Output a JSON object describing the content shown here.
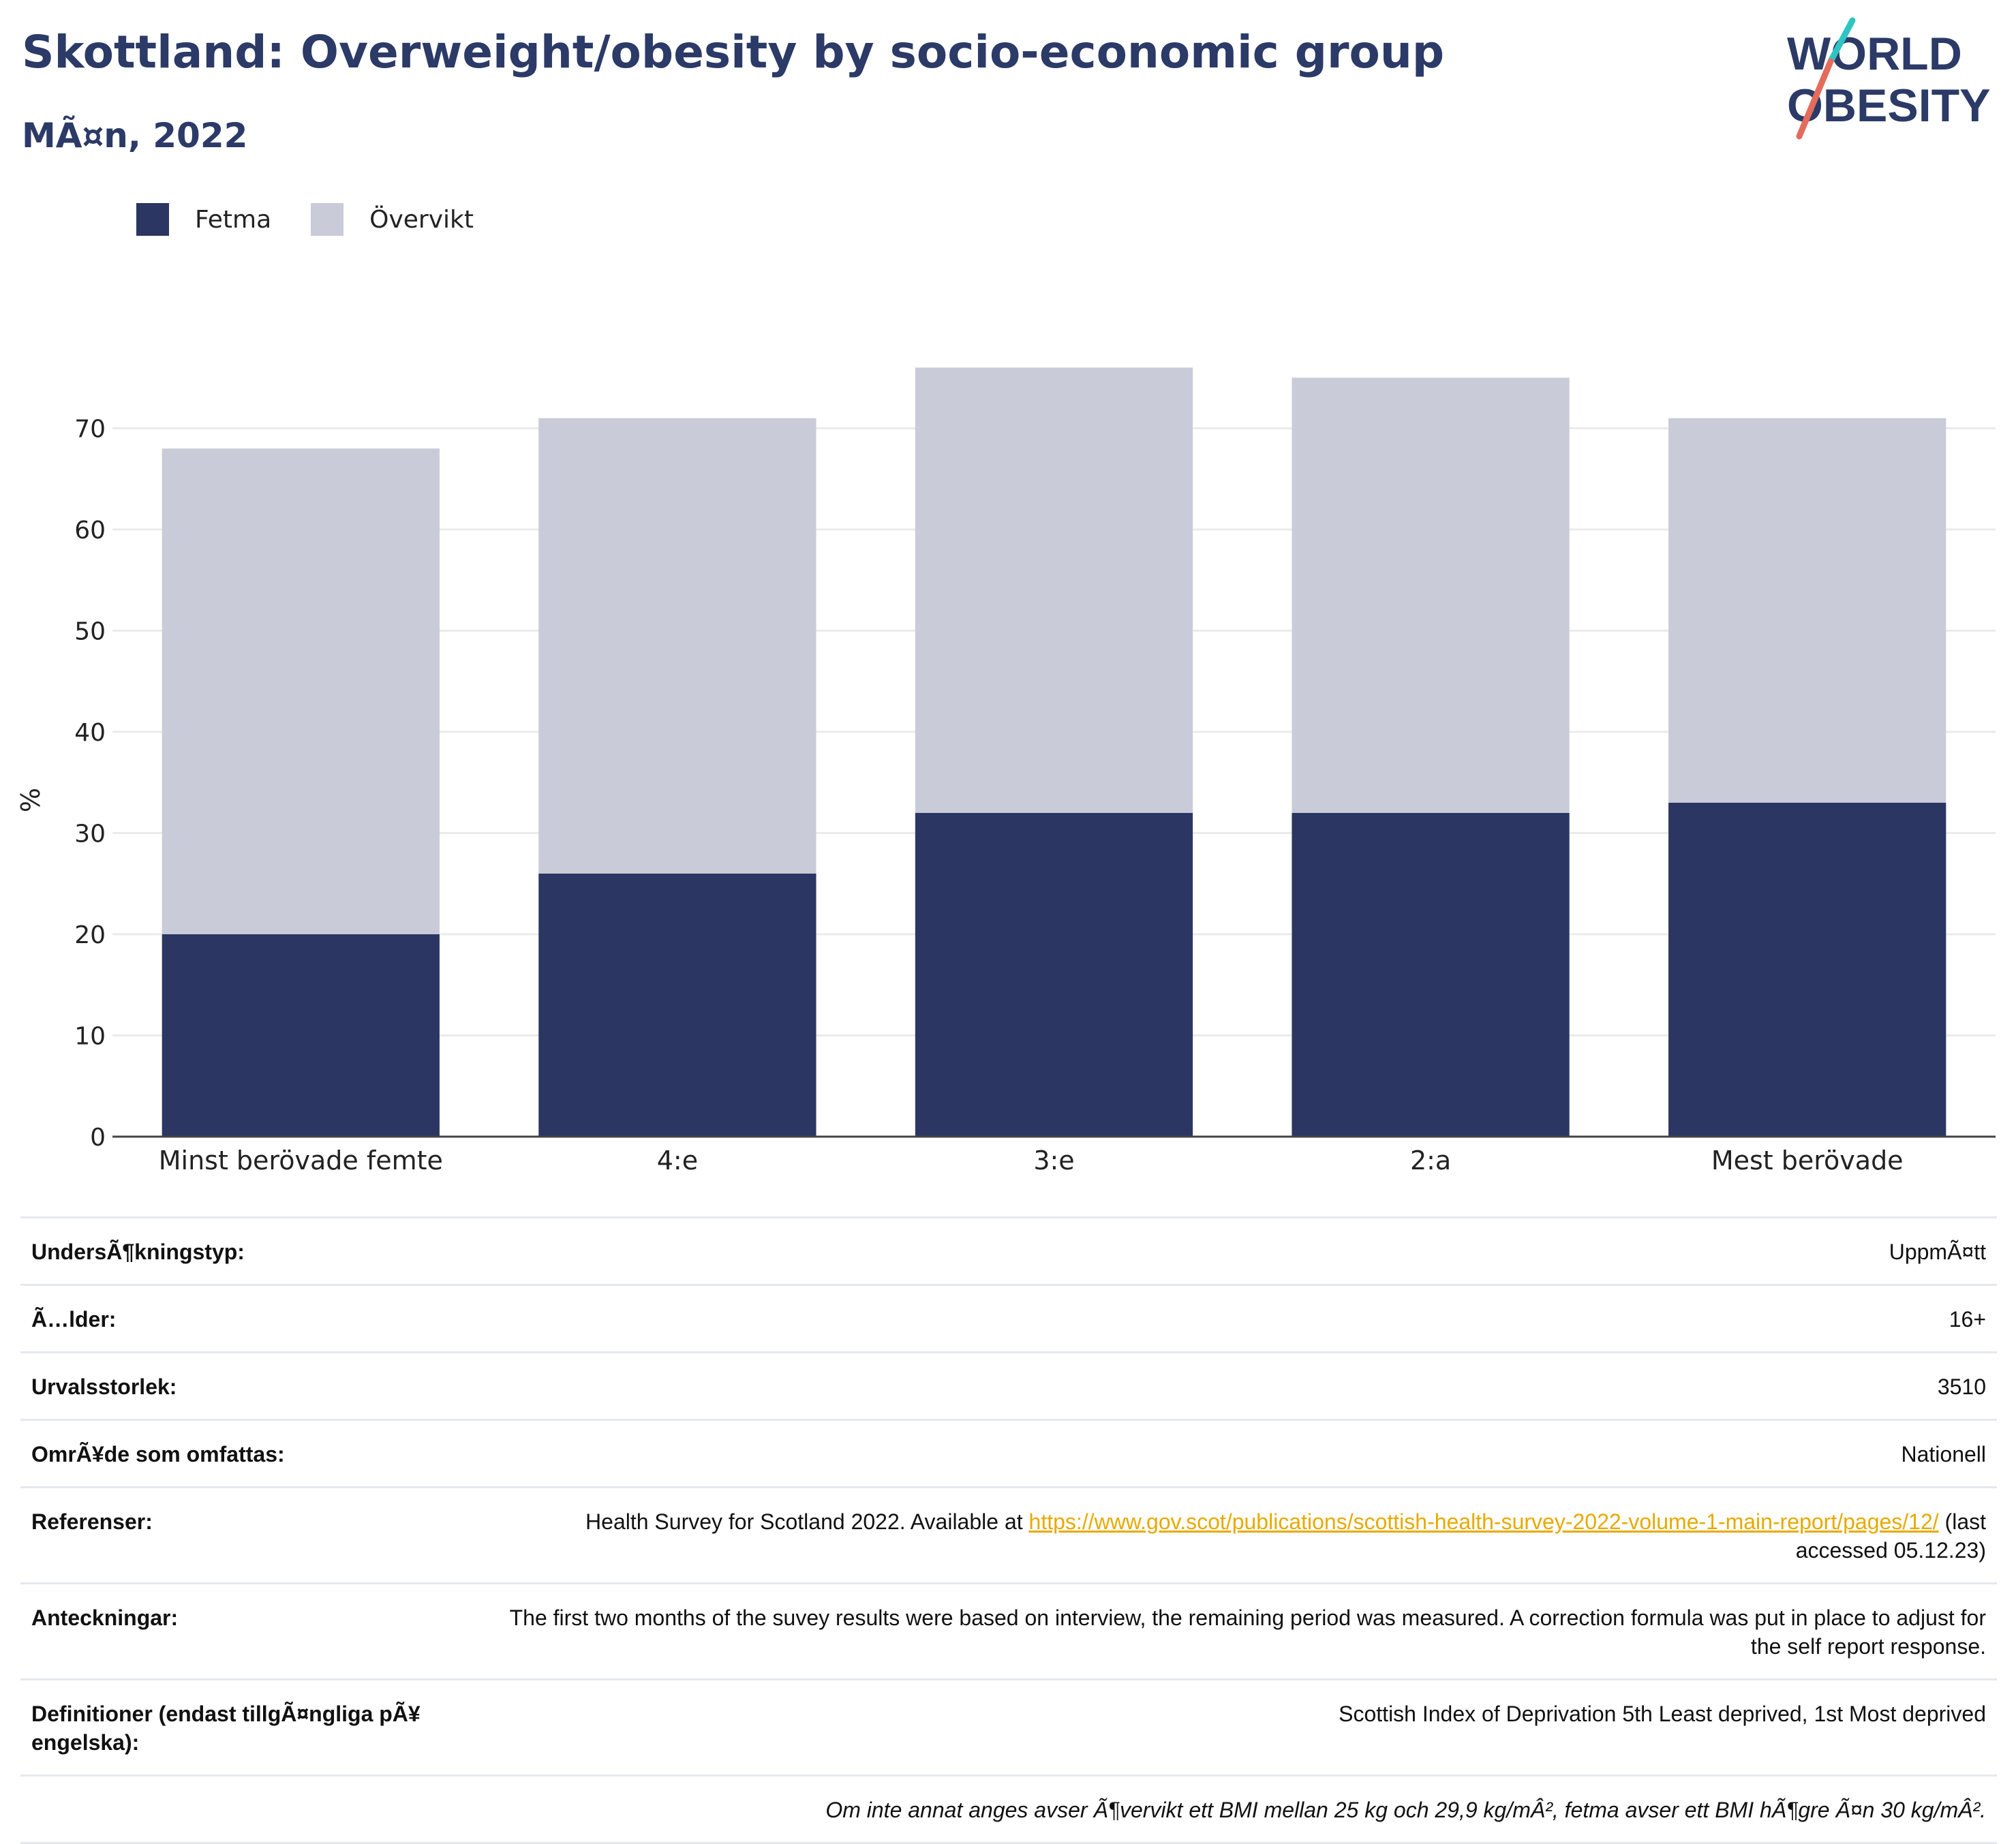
{
  "title": "Skottland: Overweight/obesity by socio-economic group",
  "subtitle": "MÃ¤n, 2022",
  "logo": {
    "line1": "WORLD",
    "line2": "OBESITY"
  },
  "legend": [
    {
      "label": "Fetma",
      "color": "#2b3663"
    },
    {
      "label": "Övervikt",
      "color": "#c9cbd8"
    }
  ],
  "chart_data": {
    "type": "bar",
    "stacked": true,
    "categories": [
      "Minst berövade femte",
      "4:e",
      "3:e",
      "2:a",
      "Mest berövade"
    ],
    "series": [
      {
        "name": "Fetma",
        "color": "#2b3663",
        "values": [
          20,
          26,
          32,
          32,
          33
        ]
      },
      {
        "name": "Övervikt",
        "color": "#c9cbd8",
        "values": [
          48,
          45,
          44,
          43,
          38
        ]
      }
    ],
    "ylabel": "%",
    "ylim": [
      0,
      80
    ],
    "yticks": [
      0,
      10,
      20,
      30,
      40,
      50,
      60,
      70
    ],
    "grid": true
  },
  "meta": [
    {
      "key": "UndersÃ¶kningstyp:",
      "value": "UppmÃ¤tt"
    },
    {
      "key": "Ã…lder:",
      "value": "16+"
    },
    {
      "key": "Urvalsstorlek:",
      "value": "3510"
    },
    {
      "key": "OmrÃ¥de som omfattas:",
      "value": "Nationell"
    },
    {
      "key": "Referenser:",
      "value_prefix": "Health Survey for Scotland 2022. Available at ",
      "link": "https://www.gov.scot/publications/scottish-health-survey-2022-volume-1-main-report/pages/12/",
      "value_suffix": " (last accessed 05.12.23)"
    },
    {
      "key": "Anteckningar:",
      "value": "The first two months of the suvey results were based on interview, the remaining period was measured. A correction formula was put in place to adjust for the self report response."
    },
    {
      "key": "Definitioner (endast tillgÃ¤ngliga pÃ¥ engelska):",
      "value": "Scottish Index of Deprivation 5th Least deprived, 1st Most deprived"
    }
  ],
  "footnote": "Om inte annat anges avser Ã¶vervikt ett BMI mellan 25 kg och 29,9 kg/mÂ², fetma avser ett BMI hÃ¶gre Ã¤n 30 kg/mÂ²."
}
